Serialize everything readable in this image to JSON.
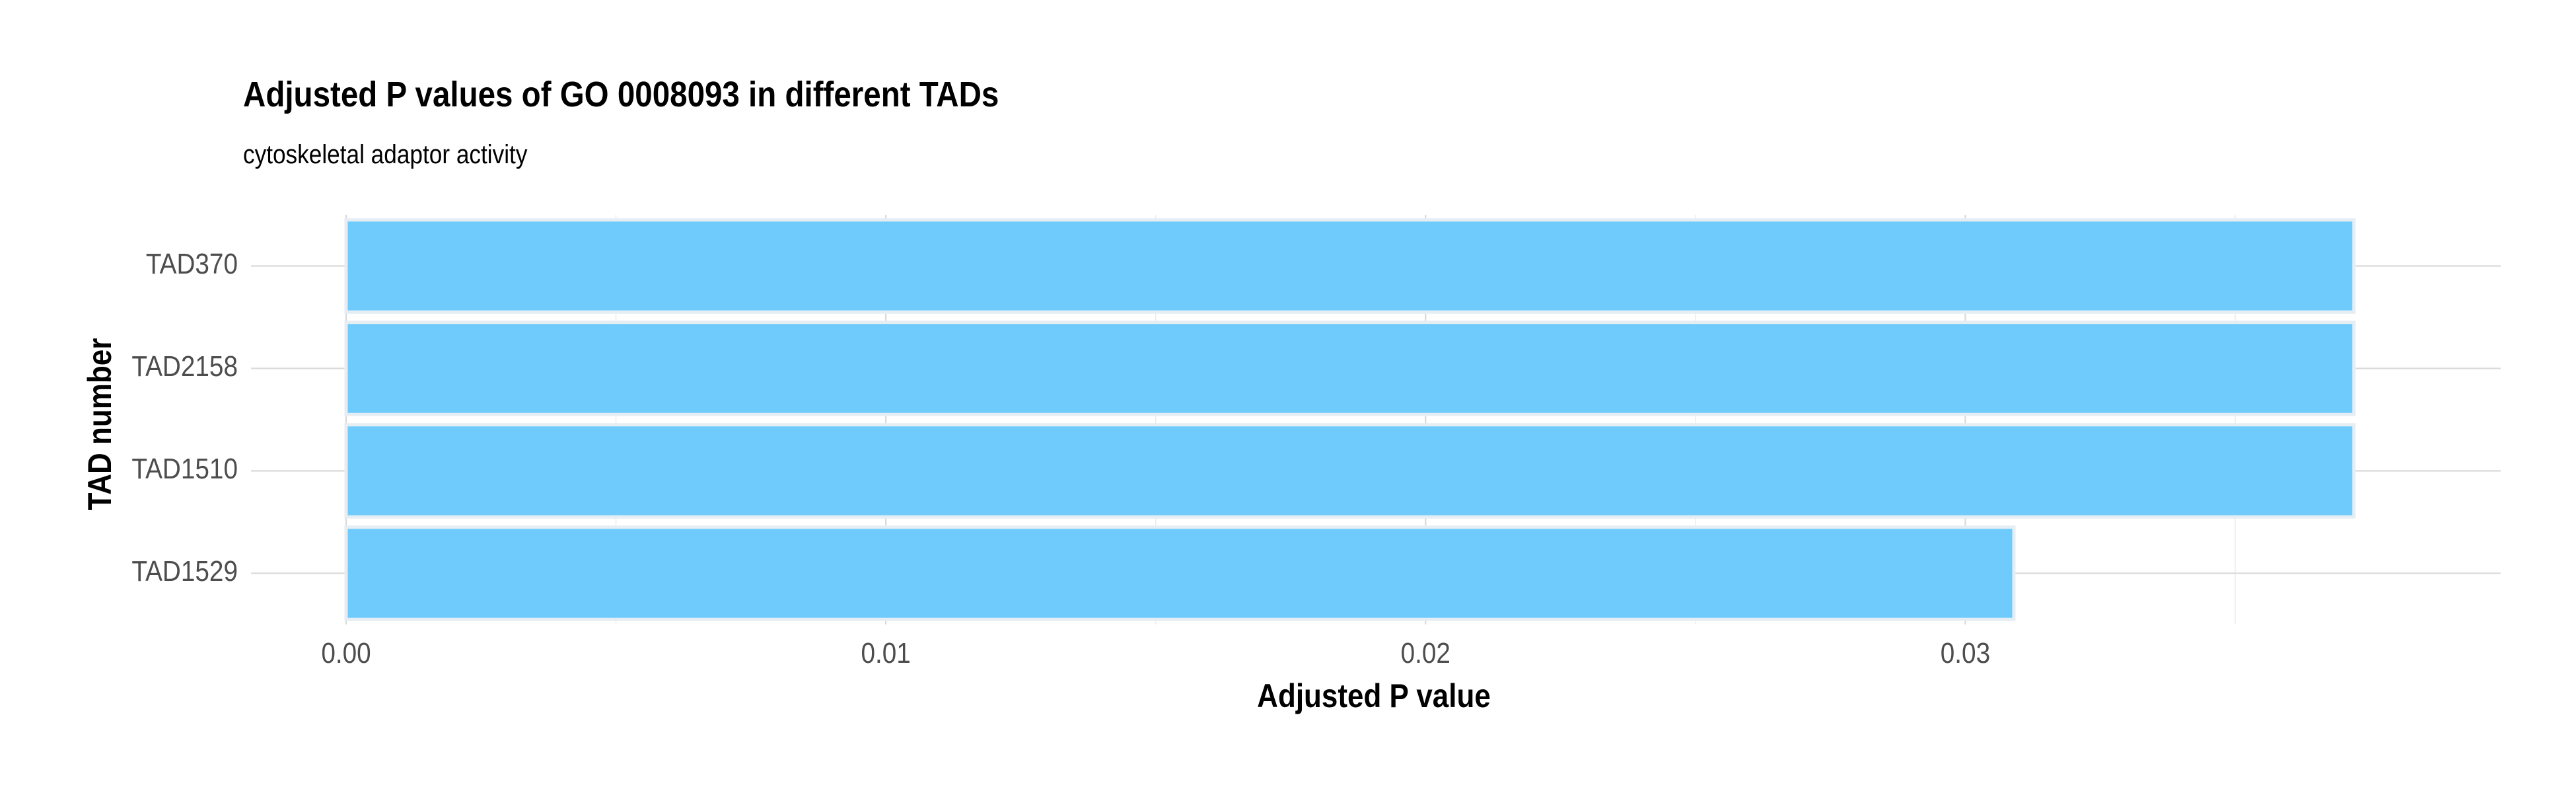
{
  "chart_data": {
    "type": "bar",
    "orientation": "horizontal",
    "title": "Adjusted P values of GO 0008093 in different TADs",
    "subtitle": "cytoskeletal adaptor activity",
    "xlabel": "Adjusted P value",
    "ylabel": "TAD number",
    "categories": [
      "TAD370",
      "TAD2158",
      "TAD1510",
      "TAD1529"
    ],
    "values": [
      0.0372,
      0.0372,
      0.0372,
      0.0309
    ],
    "xlim": [
      0,
      0.039
    ],
    "xticks": [
      "0.00",
      "0.01",
      "0.02",
      "0.03"
    ],
    "grid": true,
    "legend": "none",
    "colors": {
      "bar_fill": "#6ECBFB",
      "bar_stroke": "#E6EEF4",
      "grid_major": "#D9D9D9",
      "grid_minor": "#EBEBEB",
      "tick_text": "#4D4D4D",
      "text": "#000000"
    }
  }
}
